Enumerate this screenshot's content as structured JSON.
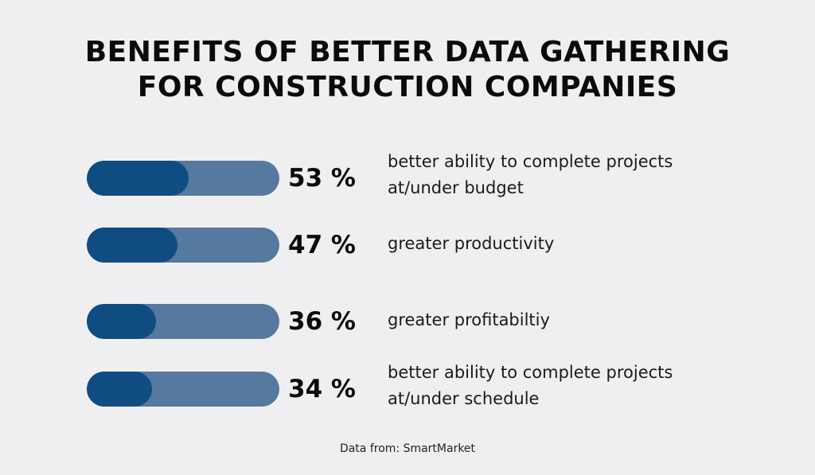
{
  "title_lines": [
    "BENEFITS OF BETTER DATA GATHERING",
    "FOR CONSTRUCTION COMPANIES"
  ],
  "colors": {
    "background": "#efeff1",
    "bar_track": "#55799f",
    "bar_fill": "#0f4c81",
    "text": "#0b0b0b"
  },
  "chart_data": {
    "type": "bar",
    "orientation": "horizontal",
    "title": "BENEFITS OF BETTER DATA GATHERING FOR CONSTRUCTION COMPANIES",
    "categories": [
      "better ability to complete projects at/under budget",
      "greater productivity",
      "greater profitabiltiy",
      "better ability to complete projects at/under schedule"
    ],
    "values": [
      53,
      47,
      36,
      34
    ],
    "value_labels": [
      "53 %",
      "47 %",
      "36 %",
      "34 %"
    ],
    "unit": "%",
    "xlim": [
      0,
      100
    ],
    "label_lines": [
      [
        "better ability to complete projects",
        "at/under budget"
      ],
      [
        "greater productivity"
      ],
      [
        "greater profitabiltiy"
      ],
      [
        "better ability to complete projects",
        "at/under schedule"
      ]
    ],
    "grid": false,
    "legend": "none"
  },
  "source": "Data from: SmartMarket"
}
